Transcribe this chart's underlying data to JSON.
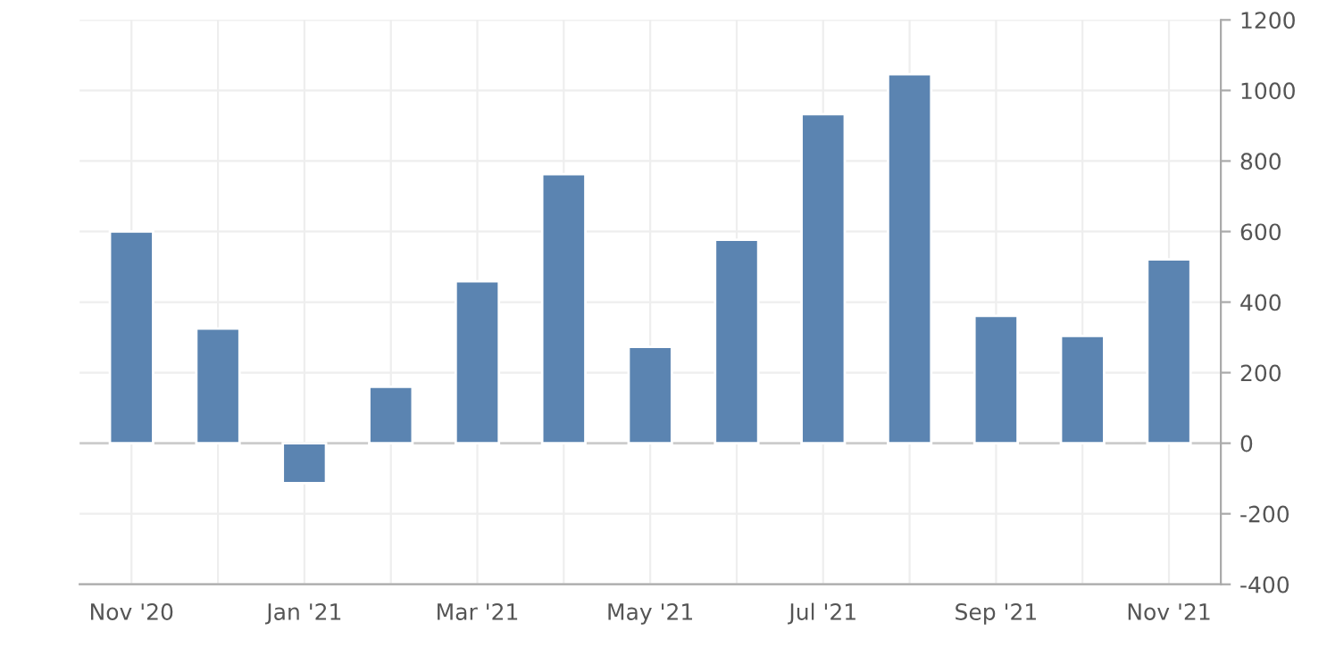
{
  "chart_data": {
    "type": "bar",
    "categories": [
      "Nov '20",
      null,
      "Jan '21",
      null,
      "Mar '21",
      null,
      "May '21",
      null,
      "Jul '21",
      null,
      "Sep '21",
      null,
      "Nov '21"
    ],
    "values": [
      600,
      325,
      -113,
      160,
      459,
      763,
      273,
      577,
      933,
      1046,
      361,
      304,
      521
    ],
    "color": "#5b84b1",
    "ylim": [
      -400,
      1200
    ],
    "yticks": [
      -400,
      -200,
      0,
      200,
      400,
      600,
      800,
      1000,
      1200
    ],
    "grid": true
  }
}
